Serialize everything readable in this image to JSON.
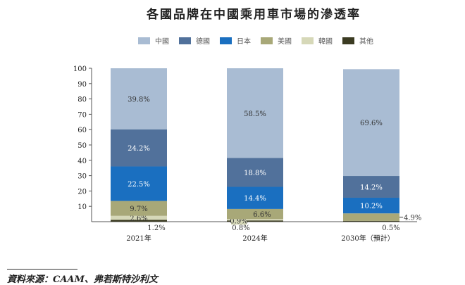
{
  "chart_data": {
    "type": "bar",
    "stacked": true,
    "title": "各國品牌在中國乘用車市場的滲透率",
    "categories": [
      "2021年",
      "2024年",
      "2030年（預計）"
    ],
    "ylim": [
      0,
      100
    ],
    "yticks": [
      10,
      20,
      30,
      40,
      50,
      60,
      70,
      80,
      90,
      100
    ],
    "grid": false,
    "legend_position": "top",
    "series": [
      {
        "name": "其他",
        "color": "#3b3b22",
        "values": [
          1.2,
          0.8,
          0.5
        ],
        "labels": [
          "1.2%",
          "0.8%",
          "0.5%"
        ]
      },
      {
        "name": "韓國",
        "color": "#d6d8b8",
        "values": [
          2.6,
          0.9,
          0
        ],
        "labels": [
          "2.6%",
          "0.9%",
          ""
        ]
      },
      {
        "name": "美國",
        "color": "#a8a878",
        "values": [
          9.7,
          6.6,
          4.9
        ],
        "labels": [
          "9.7%",
          "6.6%",
          "4.9%"
        ]
      },
      {
        "name": "日本",
        "color": "#1a6fc0",
        "values": [
          22.5,
          14.4,
          10.2
        ],
        "labels": [
          "22.5%",
          "14.4%",
          "10.2%"
        ]
      },
      {
        "name": "德國",
        "color": "#51719b",
        "values": [
          24.2,
          18.8,
          14.2
        ],
        "labels": [
          "24.2%",
          "18.8%",
          "14.2%"
        ]
      },
      {
        "name": "中國",
        "color": "#a9bcd3",
        "values": [
          39.8,
          58.5,
          69.6
        ],
        "labels": [
          "39.8%",
          "58.5%",
          "69.6%"
        ]
      }
    ],
    "legend_order": [
      "中國",
      "德國",
      "日本",
      "美國",
      "韓國",
      "其他"
    ]
  },
  "source": "資料來源：CAAM、弗若斯特沙利文"
}
